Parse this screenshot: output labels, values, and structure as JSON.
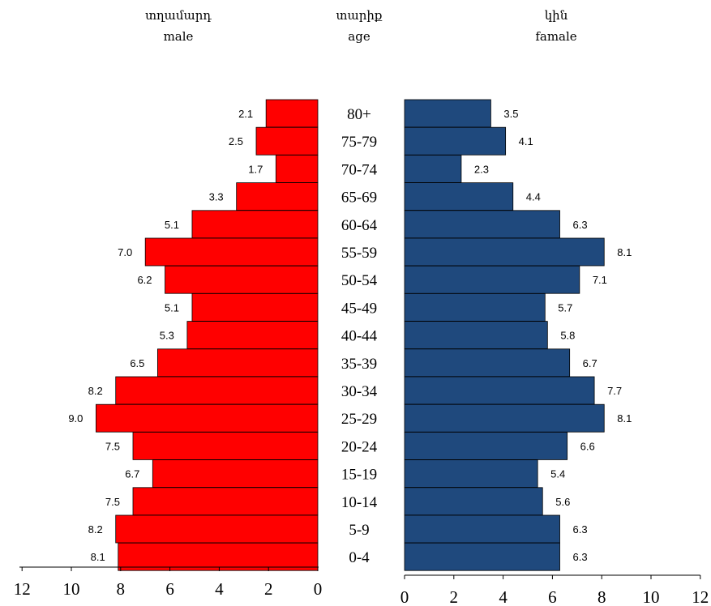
{
  "headers": {
    "male_arm": "տղամարդ",
    "male_en": "male",
    "age_arm": "տարիք",
    "age_en": "age",
    "female_arm": "կին",
    "female_en": "famale"
  },
  "colors": {
    "male": "#ff0000",
    "female": "#1f497d"
  },
  "chart_data": {
    "type": "bar",
    "orientation": "horizontal",
    "layout": "population-pyramid",
    "categories": [
      "80+",
      "75-79",
      "70-74",
      "65-69",
      "60-64",
      "55-59",
      "50-54",
      "45-49",
      "40-44",
      "35-39",
      "30-34",
      "25-29",
      "20-24",
      "15-19",
      "10-14",
      "5-9",
      "0-4"
    ],
    "series": [
      {
        "name": "male",
        "values": [
          2.1,
          2.5,
          1.7,
          3.3,
          5.1,
          7.0,
          6.2,
          5.1,
          5.3,
          6.5,
          8.2,
          9.0,
          7.5,
          6.7,
          7.5,
          8.2,
          8.1
        ]
      },
      {
        "name": "famale",
        "values": [
          3.5,
          4.1,
          2.3,
          4.4,
          6.3,
          8.1,
          7.1,
          5.7,
          5.8,
          6.7,
          7.7,
          8.1,
          6.6,
          5.4,
          5.6,
          6.3,
          6.3
        ]
      }
    ],
    "value_labels": {
      "male": [
        "2.1",
        "2.5",
        "1.7",
        "3.3",
        "5.1",
        "7.0",
        "6.2",
        "5.1",
        "5.3",
        "6.5",
        "8.2",
        "9.0",
        "7.5",
        "6.7",
        "7.5",
        "8.2",
        "8.1"
      ],
      "female": [
        "3.5",
        "4.1",
        "2.3",
        "4.4",
        "6.3",
        "8.1",
        "7.1",
        "5.7",
        "5.8",
        "6.7",
        "7.7",
        "8.1",
        "6.6",
        "5.4",
        "5.6",
        "6.3",
        "6.3"
      ]
    },
    "male_axis": {
      "ticks": [
        "12",
        "10",
        "8",
        "6",
        "4",
        "2",
        "0"
      ],
      "xlim": [
        12,
        0
      ]
    },
    "female_axis": {
      "ticks": [
        "0",
        "2",
        "4",
        "6",
        "8",
        "10",
        "12"
      ],
      "xlim": [
        0,
        12
      ]
    },
    "grid": false
  }
}
